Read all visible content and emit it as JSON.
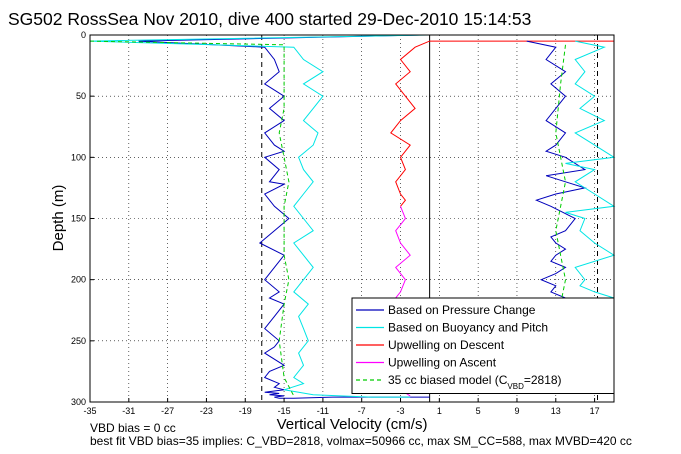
{
  "chart_data": {
    "type": "line",
    "title": "SG502 RossSea Nov 2010, dive 400 started 29-Dec-2010 15:14:53",
    "xlabel": "Vertical Velocity (cm/s)",
    "ylabel": "Depth (m)",
    "xlim": [
      -35,
      19
    ],
    "ylim": [
      0,
      300
    ],
    "y_reversed": true,
    "grid": true,
    "xticks": [
      "-35",
      "-31",
      "-27",
      "-23",
      "-19",
      "-15",
      "-11",
      "-7",
      "-3",
      "1",
      "5",
      "9",
      "13",
      "17"
    ],
    "yticks": [
      "0",
      "50",
      "100",
      "150",
      "200",
      "250",
      "300"
    ],
    "xtick_values": [
      -35,
      -31,
      -27,
      -23,
      -19,
      -15,
      -11,
      -7,
      -3,
      1,
      5,
      9,
      13,
      17
    ],
    "ytick_values": [
      0,
      50,
      100,
      150,
      200,
      250,
      300
    ],
    "vlines": [
      {
        "x": -17.3,
        "color": "#000000",
        "style": "dashed"
      },
      {
        "x": 0,
        "color": "#000000",
        "style": "solid"
      },
      {
        "x": 17.3,
        "color": "#000000",
        "style": "dashed"
      }
    ],
    "legend_position": "bottom-right",
    "series": [
      {
        "name": "Based on Pressure Change",
        "color": "#0000bb",
        "style": "solid",
        "x": [
          -1,
          -30,
          -17,
          -16,
          -15.5,
          -17,
          -15,
          -16.5,
          -15,
          -17,
          -16,
          -15,
          -17,
          -15.5,
          -16.5,
          -15,
          -17,
          -16,
          -14.5,
          -16,
          -17.5,
          -15,
          -16,
          -17,
          -15.5,
          -16.5,
          -15,
          -16,
          -17,
          -15.5,
          -16,
          -17,
          -15,
          -16.5,
          -17,
          -15.5,
          -16,
          -15,
          -16,
          -17,
          -15.5,
          -16.5,
          -15,
          -16,
          -15.5,
          -14,
          -10,
          0
        ],
        "y": [
          0,
          5,
          10,
          20,
          30,
          40,
          50,
          60,
          70,
          80,
          90,
          95,
          100,
          110,
          120,
          122,
          130,
          140,
          150,
          160,
          170,
          180,
          190,
          200,
          210,
          215,
          220,
          230,
          240,
          250,
          255,
          260,
          270,
          275,
          280,
          285,
          288,
          290,
          291,
          292,
          293,
          294,
          295,
          296,
          297,
          297,
          296,
          296
        ]
      },
      {
        "name": "Based on Buoyancy and Pitch",
        "color": "#00e5e5",
        "style": "solid",
        "x": [
          0,
          -35,
          -14,
          -13,
          -11,
          -13,
          -11,
          -12,
          -13,
          -11.5,
          -12,
          -13.5,
          -13,
          -12,
          -13,
          -14,
          -13,
          -12,
          -14,
          -13,
          -12,
          -13,
          -14,
          -12.5,
          -13.5,
          -13,
          -12.5,
          -13.5,
          -13,
          -14,
          -13,
          -15,
          -12,
          -6,
          -2
        ],
        "y": [
          0,
          5,
          10,
          20,
          30,
          40,
          50,
          60,
          70,
          80,
          90,
          100,
          110,
          120,
          130,
          140,
          150,
          160,
          170,
          180,
          190,
          200,
          210,
          220,
          230,
          240,
          250,
          260,
          270,
          280,
          285,
          290,
          294,
          296,
          296
        ]
      },
      {
        "name": "Upwelling on Descent",
        "color": "#ff0000",
        "style": "solid",
        "x": [
          19,
          0,
          -1.5,
          -3,
          -2,
          -3.5,
          -2.5,
          -1.5,
          -3,
          -4,
          -2,
          -3,
          -2.5,
          -3.5,
          -3,
          -2.5,
          -3
        ],
        "y": [
          5,
          5,
          10,
          20,
          30,
          40,
          50,
          60,
          70,
          80,
          90,
          100,
          110,
          120,
          130,
          135,
          140
        ]
      },
      {
        "name": "Upwelling on Ascent",
        "color": "#ff00ff",
        "style": "solid",
        "x": [
          -3,
          -2.5,
          -3.5,
          -3,
          -2,
          -3.5,
          -2.5,
          -3,
          -4,
          -2.5,
          -3,
          -3.5,
          -2.5,
          -3,
          -3.5,
          -2.5,
          -3,
          -2
        ],
        "y": [
          140,
          150,
          160,
          170,
          180,
          190,
          200,
          210,
          220,
          230,
          240,
          250,
          260,
          270,
          280,
          285,
          290,
          295
        ]
      },
      {
        "name": "35 cc biased model (C_VBD=2818)",
        "color": "#00cc00",
        "style": "dashed",
        "x": [
          -35,
          -15,
          -15,
          -15,
          -15,
          -15.5,
          -15,
          -14.5,
          -15,
          -15,
          -15,
          -14.5,
          -15,
          -15.5,
          -15,
          -14
        ],
        "y": [
          5,
          8,
          20,
          40,
          60,
          80,
          100,
          120,
          140,
          160,
          180,
          200,
          220,
          250,
          280,
          295
        ]
      },
      {
        "name": "",
        "color": "#0000bb",
        "style": "solid",
        "x": [
          10,
          13,
          12,
          14,
          12.5,
          14,
          13,
          12,
          14,
          13,
          12,
          14,
          16,
          12,
          14,
          16,
          13,
          11,
          12.5,
          15,
          14,
          12.5,
          13,
          14,
          13,
          12.5,
          14,
          13,
          11.5,
          13,
          12.5,
          14,
          13,
          11,
          13
        ],
        "y": [
          5,
          10,
          20,
          30,
          40,
          50,
          60,
          70,
          80,
          90,
          95,
          100,
          110,
          115,
          120,
          125,
          130,
          135,
          140,
          150,
          160,
          165,
          170,
          175,
          180,
          185,
          190,
          195,
          200,
          205,
          210,
          215,
          218,
          219,
          220
        ]
      },
      {
        "name": "",
        "color": "#00e5e5",
        "style": "solid",
        "x": [
          15,
          18,
          15,
          16,
          15,
          17,
          15.5,
          18,
          15,
          17,
          19,
          14,
          17,
          15,
          17,
          19,
          14,
          16,
          15.5,
          17,
          19,
          15,
          16,
          15.5,
          17,
          19,
          15
        ],
        "y": [
          5,
          10,
          20,
          30,
          40,
          50,
          60,
          70,
          80,
          90,
          100,
          105,
          110,
          120,
          130,
          140,
          145,
          150,
          160,
          170,
          180,
          190,
          200,
          205,
          210,
          215,
          220
        ]
      },
      {
        "name": "",
        "color": "#00cc00",
        "style": "dashed",
        "x": [
          14,
          13.5,
          13,
          14,
          13,
          13.5,
          14,
          13.5
        ],
        "y": [
          8,
          40,
          80,
          120,
          160,
          180,
          200,
          220
        ]
      }
    ]
  },
  "footer": {
    "vbd_bias": "VBD bias = 0 cc",
    "best_fit": "best fit VBD bias=35 implies: C_VBD=2818, volmax=50966 cc, max SM_CC=588, max MVBD=420 cc"
  }
}
